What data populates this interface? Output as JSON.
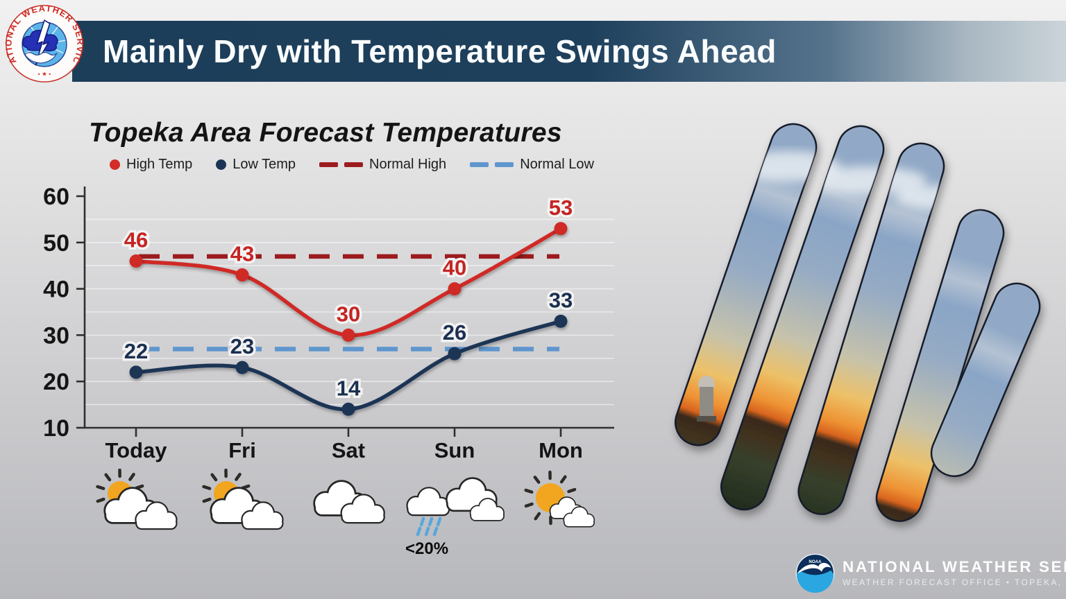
{
  "header": {
    "title": "Mainly Dry with Temperature Swings Ahead",
    "bg_color": "#1d3e59"
  },
  "nws_logo": {
    "ring_text": "NATIONAL WEATHER SERVICE",
    "marks": "• ★ •"
  },
  "chart": {
    "title": "Topeka Area Forecast Temperatures",
    "legend": [
      {
        "label": "High Temp",
        "type": "dot",
        "color": "#d32b27"
      },
      {
        "label": "Low Temp",
        "type": "dot",
        "color": "#1b3455"
      },
      {
        "label": "Normal High",
        "type": "dash",
        "color": "#9c1c1e"
      },
      {
        "label": "Normal Low",
        "type": "dash",
        "color": "#5f96ce"
      }
    ]
  },
  "chart_data": {
    "type": "line",
    "title": "Topeka Area Forecast Temperatures",
    "categories": [
      "Today",
      "Fri",
      "Sat",
      "Sun",
      "Mon"
    ],
    "series": [
      {
        "name": "High Temp",
        "values": [
          46,
          43,
          30,
          40,
          53
        ],
        "color": "#cf2926",
        "label_color": "#c52422"
      },
      {
        "name": "Low Temp",
        "values": [
          22,
          23,
          14,
          26,
          33
        ],
        "color": "#1c3455",
        "label_color": "#1b3050"
      }
    ],
    "reference_lines": [
      {
        "name": "Normal High",
        "value": 47,
        "color": "#9c1c1e",
        "style": "dashed"
      },
      {
        "name": "Normal Low",
        "value": 27,
        "color": "#5f96ce",
        "style": "dashed"
      }
    ],
    "ylim": [
      10,
      60
    ],
    "yticks": [
      10,
      20,
      30,
      40,
      50,
      60
    ],
    "gridline_step": 5,
    "grid": "light horizontal lines every 5 degrees",
    "legend_position": "top-left above plot",
    "xlabel": "",
    "ylabel": ""
  },
  "forecast": {
    "days": [
      {
        "label": "Today",
        "icon": "partly-cloudy"
      },
      {
        "label": "Fri",
        "icon": "partly-cloudy"
      },
      {
        "label": "Sat",
        "icon": "cloudy"
      },
      {
        "label": "Sun",
        "icon": "rain-clouds",
        "pop": "<20%"
      },
      {
        "label": "Mon",
        "icon": "mostly-sunny"
      }
    ]
  },
  "footer": {
    "noaa": "NOAA",
    "org": "NATIONAL WEATHER SERVICE",
    "office": "WEATHER FORECAST OFFICE  •  TOPEKA, KS"
  }
}
